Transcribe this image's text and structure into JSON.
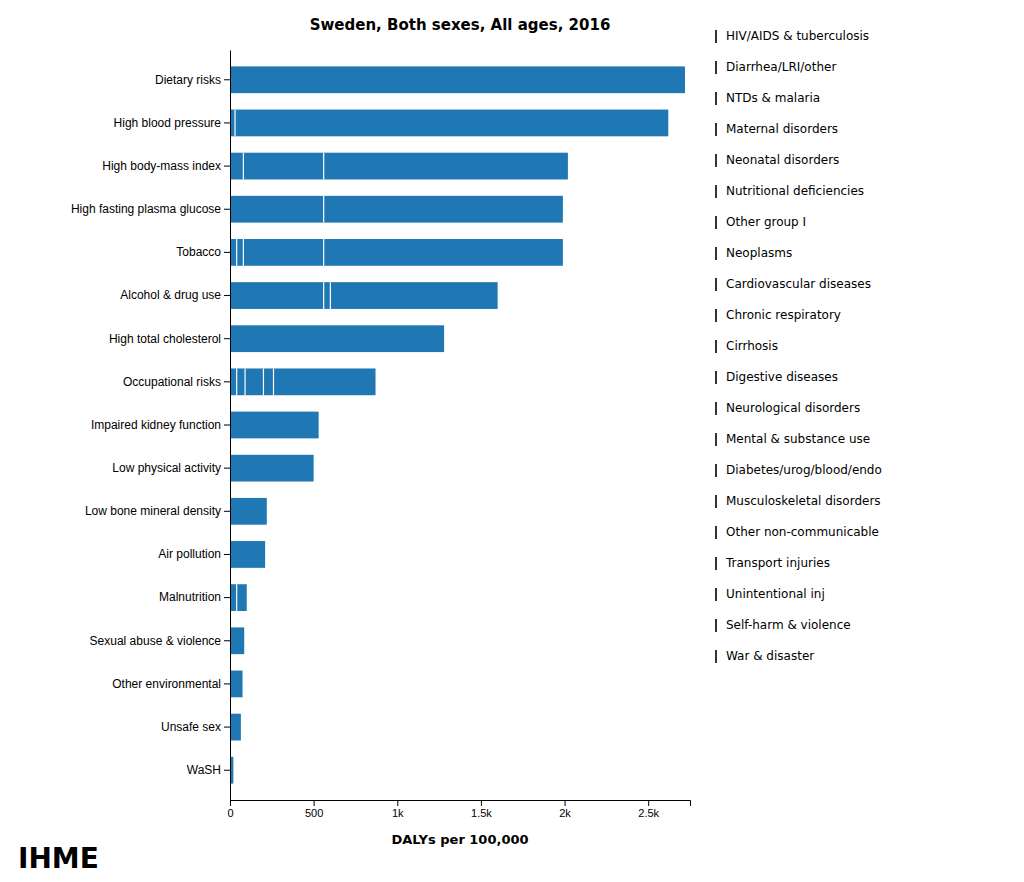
{
  "chart_data": {
    "type": "bar",
    "orientation": "horizontal",
    "title": "Sweden, Both sexes, All ages, 2016",
    "x_label": "DALYs per 100,000",
    "categories": [
      "Dietary risks",
      "High blood pressure",
      "High body-mass index",
      "High fasting plasma glucose",
      "Tobacco",
      "Alcohol & drug use",
      "High total cholesterol",
      "Occupational risks",
      "Impaired kidney function",
      "Low physical activity",
      "Low bone mineral density",
      "Air pollution",
      "Malnutrition",
      "Sexual abuse & violence",
      "Other environmental",
      "Unsafe sex",
      "WaSH"
    ],
    "values": [
      2720,
      2620,
      2020,
      1990,
      1990,
      1600,
      1280,
      870,
      530,
      500,
      220,
      210,
      100,
      85,
      75,
      65,
      20
    ],
    "dividers": [
      [],
      [
        30
      ],
      [
        80,
        560
      ],
      [
        560
      ],
      [
        40,
        80,
        560
      ],
      [
        560,
        600
      ],
      [],
      [
        40,
        90,
        200,
        260
      ],
      [],
      [],
      [],
      [],
      [
        40
      ],
      [],
      [],
      [],
      []
    ],
    "legend_items": [
      "HIV/AIDS & tuberculosis",
      "Diarrhea/LRI/other",
      "NTDs & malaria",
      "Maternal disorders",
      "Neonatal disorders",
      "Nutritional deficiencies",
      "Other group I",
      "Neoplasms",
      "Cardiovascular diseases",
      "Chronic respiratory",
      "Cirrhosis",
      "Digestive diseases",
      "Neurological disorders",
      "Mental & substance use",
      "Diabetes/urog/blood/endo",
      "Musculoskeletal disorders",
      "Other non-communicable",
      "Transport injuries",
      "Unintentional inj",
      "Self-harm & violence",
      "War & disaster"
    ],
    "annotations": [
      "IHME"
    ],
    "xlim": [
      0,
      2750
    ],
    "xticks": [
      0,
      500,
      {
        "value": 1000,
        "label": "1k"
      },
      {
        "value": 1500,
        "label": "1.5k"
      },
      {
        "value": 2000,
        "label": "2k"
      },
      {
        "value": 2500,
        "label": "2.5k"
      }
    ],
    "grid": false
  }
}
